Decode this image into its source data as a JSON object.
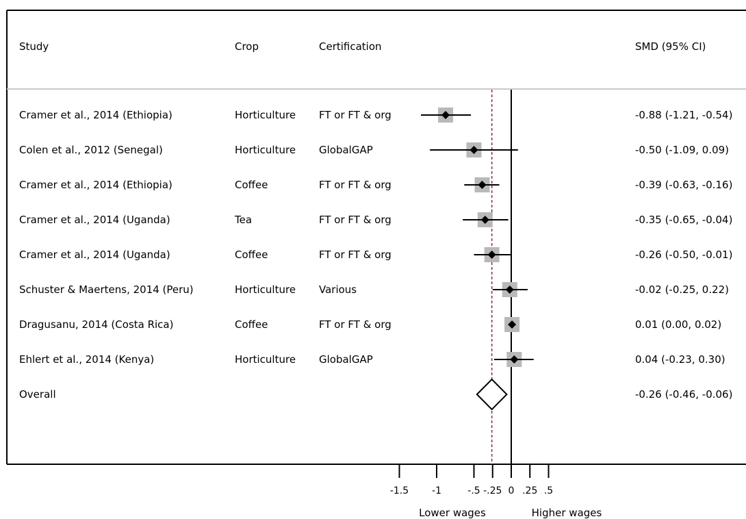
{
  "chart_data": {
    "type": "forest",
    "columns": {
      "study": "Study",
      "crop": "Crop",
      "certification": "Certification",
      "smd": "SMD (95% CI)"
    },
    "studies": [
      {
        "study": "Cramer et al., 2014 (Ethiopia)",
        "crop": "Horticulture",
        "certification": "FT or FT & org",
        "smd": -0.88,
        "lo": -1.21,
        "hi": -0.54,
        "label": "-0.88 (-1.21, -0.54)"
      },
      {
        "study": "Colen et al., 2012 (Senegal)",
        "crop": "Horticulture",
        "certification": "GlobalGAP",
        "smd": -0.5,
        "lo": -1.09,
        "hi": 0.09,
        "label": "-0.50 (-1.09, 0.09)"
      },
      {
        "study": "Cramer et al., 2014 (Ethiopia)",
        "crop": "Coffee",
        "certification": "FT or FT & org",
        "smd": -0.39,
        "lo": -0.63,
        "hi": -0.16,
        "label": "-0.39 (-0.63, -0.16)"
      },
      {
        "study": "Cramer et al., 2014 (Uganda)",
        "crop": "Tea",
        "certification": "FT or FT & org",
        "smd": -0.35,
        "lo": -0.65,
        "hi": -0.04,
        "label": "-0.35 (-0.65, -0.04)"
      },
      {
        "study": "Cramer et al., 2014 (Uganda)",
        "crop": "Coffee",
        "certification": "FT or FT & org",
        "smd": -0.26,
        "lo": -0.5,
        "hi": -0.01,
        "label": "-0.26 (-0.50, -0.01)"
      },
      {
        "study": "Schuster & Maertens, 2014 (Peru)",
        "crop": "Horticulture",
        "certification": "Various",
        "smd": -0.02,
        "lo": -0.25,
        "hi": 0.22,
        "label": "-0.02 (-0.25, 0.22)"
      },
      {
        "study": "Dragusanu, 2014 (Costa Rica)",
        "crop": "Coffee",
        "certification": "FT or FT & org",
        "smd": 0.01,
        "lo": 0.0,
        "hi": 0.02,
        "label": "0.01 (0.00, 0.02)"
      },
      {
        "study": "Ehlert et al., 2014 (Kenya)",
        "crop": "Horticulture",
        "certification": "GlobalGAP",
        "smd": 0.04,
        "lo": -0.23,
        "hi": 0.3,
        "label": "0.04 (-0.23, 0.30)"
      }
    ],
    "overall": {
      "study": "Overall",
      "smd": -0.26,
      "lo": -0.46,
      "hi": -0.06,
      "label": "-0.26 (-0.46, -0.06)"
    },
    "x_ticks": [
      {
        "value": -1.5,
        "label": "-1.5"
      },
      {
        "value": -1,
        "label": "-1"
      },
      {
        "value": -0.5,
        "label": "-.5"
      },
      {
        "value": -0.25,
        "label": "-.25"
      },
      {
        "value": 0,
        "label": "0"
      },
      {
        "value": 0.25,
        "label": ".25"
      },
      {
        "value": 0.5,
        "label": ".5"
      }
    ],
    "null_line": 0,
    "reference_line": -0.26,
    "direction_labels": {
      "left": "Lower wages",
      "right": "Higher wages"
    },
    "colors": {
      "box": "#b9b9b9",
      "reference_line": "#8b2a3a",
      "frame_header_rule": "#c8c8c8"
    }
  }
}
